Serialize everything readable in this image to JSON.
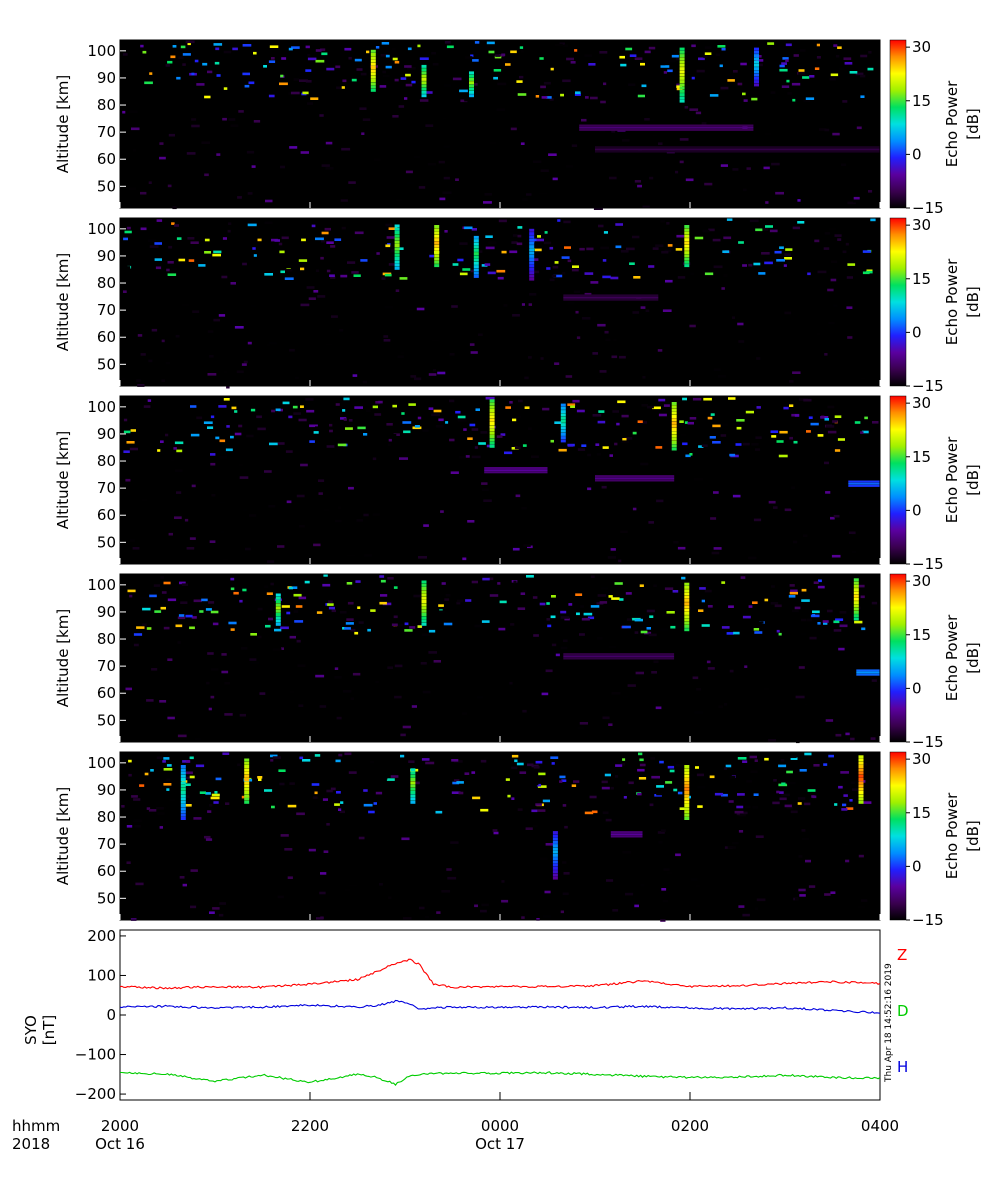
{
  "figure": {
    "timestamp": "Thu Apr 18 14:52:16 2019",
    "time_axis": {
      "row_label_1": "hhmm",
      "row_label_2": "2018",
      "ticks": [
        {
          "hhmm": "2000",
          "date": "Oct 16"
        },
        {
          "hhmm": "2200",
          "date": ""
        },
        {
          "hhmm": "0000",
          "date": "Oct 17"
        },
        {
          "hhmm": "0200",
          "date": ""
        },
        {
          "hhmm": "0400",
          "date": ""
        }
      ]
    },
    "colorbar": {
      "label_line1": "Echo Power",
      "label_line2": "[dB]",
      "ticks": [
        "30",
        "15",
        "0",
        "−15"
      ],
      "range": [
        -15,
        32
      ],
      "palette": [
        "#000000",
        "#3a0050",
        "#5a00a0",
        "#2020ff",
        "#0090ff",
        "#00e0e0",
        "#00e060",
        "#a0f000",
        "#ffff00",
        "#ff9000",
        "#ff0000"
      ]
    },
    "panel_ylabel": "Altitude  [km]",
    "panel_yticks": [
      "100",
      "90",
      "80",
      "70",
      "60",
      "50"
    ]
  },
  "chart_data": [
    {
      "type": "heatmap",
      "title": "",
      "ylabel": "Altitude [km]",
      "ylim": [
        42,
        104
      ],
      "xlim": [
        "2018-10-16 20:00",
        "2018-10-17 04:00"
      ],
      "colorbar_label": "Echo Power [dB]",
      "colorbar_range": [
        -15,
        32
      ],
      "meteor_trails": [
        {
          "time": "22:40",
          "alt": [
            86,
            101
          ],
          "db": 25
        },
        {
          "time": "23:12",
          "alt": [
            84,
            95
          ],
          "db": 20
        },
        {
          "time": "23:42",
          "alt": [
            84,
            93
          ],
          "db": 18
        },
        {
          "time": "01:55",
          "alt": [
            82,
            102
          ],
          "db": 22
        },
        {
          "time": "02:42",
          "alt": [
            88,
            102
          ],
          "db": 8
        }
      ],
      "layers": [
        {
          "time": [
            "00:50",
            "02:40"
          ],
          "alt": 72,
          "db": -8
        },
        {
          "time": [
            "01:00",
            "04:00"
          ],
          "alt": 64,
          "db": -11
        }
      ]
    },
    {
      "type": "heatmap",
      "title": "",
      "ylabel": "Altitude [km]",
      "ylim": [
        42,
        104
      ],
      "xlim": [
        "2018-10-16 20:00",
        "2018-10-17 04:00"
      ],
      "colorbar_label": "Echo Power [dB]",
      "colorbar_range": [
        -15,
        32
      ],
      "meteor_trails": [
        {
          "time": "22:55",
          "alt": [
            86,
            102
          ],
          "db": 18
        },
        {
          "time": "23:20",
          "alt": [
            87,
            102
          ],
          "db": 26
        },
        {
          "time": "23:45",
          "alt": [
            83,
            98
          ],
          "db": 14
        },
        {
          "time": "00:20",
          "alt": [
            82,
            101
          ],
          "db": 6
        },
        {
          "time": "01:58",
          "alt": [
            87,
            102
          ],
          "db": 24
        }
      ],
      "layers": [
        {
          "time": [
            "00:40",
            "01:40"
          ],
          "alt": 75,
          "db": -10
        }
      ]
    },
    {
      "type": "heatmap",
      "title": "",
      "ylabel": "Altitude [km]",
      "ylim": [
        42,
        104
      ],
      "xlim": [
        "2018-10-16 20:00",
        "2018-10-17 04:00"
      ],
      "colorbar_label": "Echo Power [dB]",
      "colorbar_range": [
        -15,
        32
      ],
      "meteor_trails": [
        {
          "time": "23:55",
          "alt": [
            86,
            103
          ],
          "db": 24
        },
        {
          "time": "00:40",
          "alt": [
            88,
            102
          ],
          "db": 12
        },
        {
          "time": "01:50",
          "alt": [
            85,
            102
          ],
          "db": 26
        }
      ],
      "layers": [
        {
          "time": [
            "23:50",
            "00:30"
          ],
          "alt": 77,
          "db": -6
        },
        {
          "time": [
            "01:00",
            "01:50"
          ],
          "alt": 74,
          "db": -7
        },
        {
          "time": [
            "03:40",
            "04:00"
          ],
          "alt": 72,
          "db": 2
        }
      ]
    },
    {
      "type": "heatmap",
      "title": "",
      "ylabel": "Altitude [km]",
      "ylim": [
        42,
        104
      ],
      "xlim": [
        "2018-10-16 20:00",
        "2018-10-17 04:00"
      ],
      "colorbar_label": "Echo Power [dB]",
      "colorbar_range": [
        -15,
        32
      ],
      "meteor_trails": [
        {
          "time": "23:12",
          "alt": [
            86,
            102
          ],
          "db": 22
        },
        {
          "time": "21:40",
          "alt": [
            86,
            97
          ],
          "db": 18
        },
        {
          "time": "01:58",
          "alt": [
            84,
            102
          ],
          "db": 26
        },
        {
          "time": "03:45",
          "alt": [
            88,
            103
          ],
          "db": 24
        }
      ],
      "layers": [
        {
          "time": [
            "00:40",
            "01:50"
          ],
          "alt": 74,
          "db": -9
        },
        {
          "time": [
            "03:45",
            "04:00"
          ],
          "alt": 68,
          "db": 4
        }
      ]
    },
    {
      "type": "heatmap",
      "title": "",
      "ylabel": "Altitude [km]",
      "ylim": [
        42,
        104
      ],
      "xlim": [
        "2018-10-16 20:00",
        "2018-10-17 04:00"
      ],
      "colorbar_label": "Echo Power [dB]",
      "colorbar_range": [
        -15,
        32
      ],
      "meteor_trails": [
        {
          "time": "20:40",
          "alt": [
            80,
            100
          ],
          "db": 12
        },
        {
          "time": "21:20",
          "alt": [
            86,
            102
          ],
          "db": 26
        },
        {
          "time": "23:05",
          "alt": [
            86,
            99
          ],
          "db": 18
        },
        {
          "time": "00:35",
          "alt": [
            58,
            76
          ],
          "db": 6
        },
        {
          "time": "01:58",
          "alt": [
            80,
            100
          ],
          "db": 28
        },
        {
          "time": "03:48",
          "alt": [
            86,
            103
          ],
          "db": 30
        }
      ],
      "layers": [
        {
          "time": [
            "01:10",
            "01:30"
          ],
          "alt": 74,
          "db": -6
        }
      ]
    },
    {
      "type": "line",
      "title": "",
      "ylabel": "SYO\n[nT]",
      "xlim": [
        "2018-10-16 20:00",
        "2018-10-17 04:00"
      ],
      "ylim": [
        -215,
        215
      ],
      "yticks": [
        "200",
        "100",
        "0",
        "−100",
        "−200"
      ],
      "x_hours_after_2000": [
        0,
        0.5,
        1.0,
        1.5,
        2.0,
        2.5,
        2.7,
        2.9,
        3.05,
        3.15,
        3.3,
        3.5,
        4.0,
        4.5,
        5.0,
        5.5,
        6.0,
        6.5,
        7.0,
        7.5,
        8.0
      ],
      "series": [
        {
          "name": "Z",
          "color": "#ff0000",
          "values": [
            72,
            68,
            72,
            70,
            78,
            90,
            110,
            130,
            140,
            128,
            78,
            70,
            72,
            72,
            74,
            86,
            72,
            74,
            80,
            84,
            80
          ]
        },
        {
          "name": "D",
          "color": "#00cc00",
          "values": [
            -145,
            -150,
            -168,
            -152,
            -170,
            -150,
            -158,
            -175,
            -155,
            -150,
            -148,
            -147,
            -147,
            -146,
            -150,
            -155,
            -158,
            -157,
            -152,
            -158,
            -160
          ]
        },
        {
          "name": "H",
          "color": "#0000dd",
          "values": [
            20,
            22,
            18,
            20,
            25,
            20,
            24,
            35,
            28,
            15,
            18,
            20,
            19,
            20,
            19,
            22,
            18,
            15,
            18,
            12,
            5
          ]
        }
      ],
      "legend_placement": "right"
    }
  ]
}
